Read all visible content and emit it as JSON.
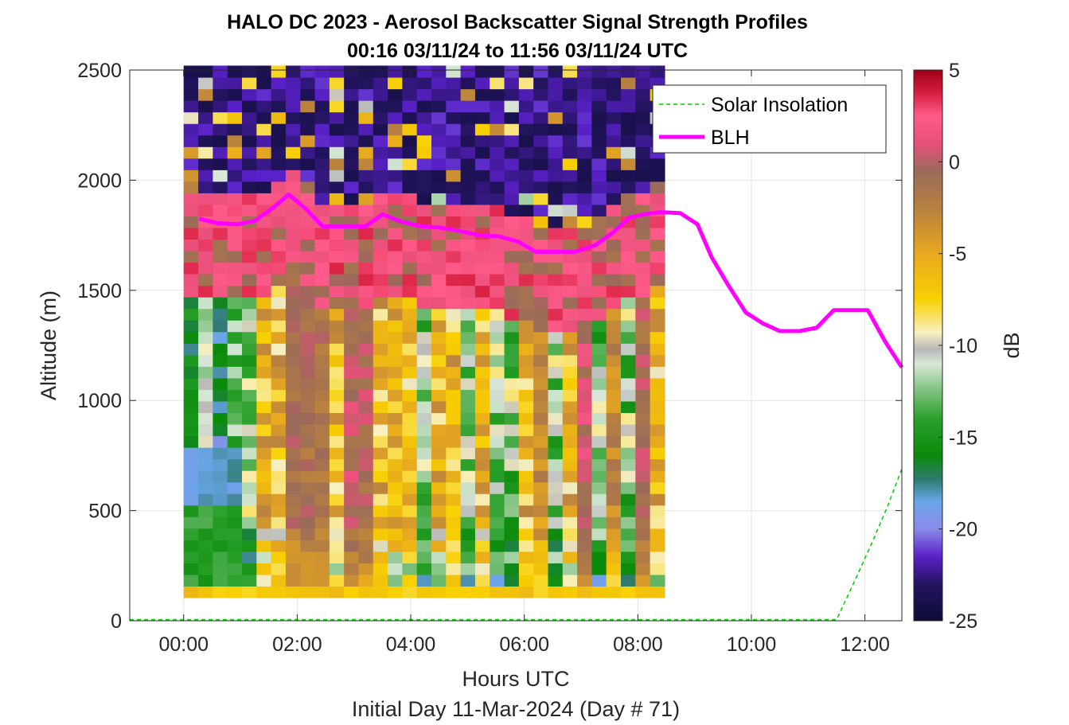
{
  "chart_data": {
    "type": "heatmap",
    "title": "HALO DC 2023 - Aerosol Backscatter Signal Strength Profiles",
    "subtitle": "00:16 03/11/24 to 11:56 03/11/24  UTC",
    "xlabel": "Hours UTC",
    "xlabel2": "Initial Day 11-Mar-2024 (Day # 71)",
    "ylabel": "Altitude (m)",
    "colorbar_label": "dB",
    "x_ticks": [
      "00:00",
      "02:00",
      "04:00",
      "06:00",
      "08:00",
      "10:00",
      "12:00"
    ],
    "x_tick_hours": [
      0,
      2,
      4,
      6,
      8,
      10,
      12
    ],
    "y_ticks": [
      "0",
      "500",
      "1000",
      "1500",
      "2000",
      "2500"
    ],
    "y_tick_values": [
      0,
      500,
      1000,
      1500,
      2000,
      2500
    ],
    "colorbar_ticks": [
      "5",
      "0",
      "-5",
      "-10",
      "-15",
      "-20",
      "-25"
    ],
    "colorbar_tick_values": [
      5,
      0,
      -5,
      -10,
      -15,
      -20,
      -25
    ],
    "xlim_hours": [
      -0.95,
      12.65
    ],
    "ylim": [
      0,
      2500
    ],
    "clim": [
      -25,
      5
    ],
    "grid": true,
    "legend_position": "top-right",
    "colormap_stops": [
      {
        "v": -25,
        "c": "#0d0d36"
      },
      {
        "v": -23,
        "c": "#241460"
      },
      {
        "v": -21.5,
        "c": "#5a20c8"
      },
      {
        "v": -20,
        "c": "#8a8ae8"
      },
      {
        "v": -18.5,
        "c": "#6aa6e8"
      },
      {
        "v": -17.3,
        "c": "#2e7a70"
      },
      {
        "v": -16,
        "c": "#0a8a0a"
      },
      {
        "v": -14,
        "c": "#2aa02a"
      },
      {
        "v": -12.5,
        "c": "#7ec07e"
      },
      {
        "v": -11,
        "c": "#d8e8d8"
      },
      {
        "v": -10.2,
        "c": "#b8b8b8"
      },
      {
        "v": -9.3,
        "c": "#f8f0c0"
      },
      {
        "v": -7.5,
        "c": "#f8d000"
      },
      {
        "v": -5,
        "c": "#e8a820"
      },
      {
        "v": -2.5,
        "c": "#b88040"
      },
      {
        "v": -0.5,
        "c": "#9a6a5a"
      },
      {
        "v": 1,
        "c": "#e8507a"
      },
      {
        "v": 2.5,
        "c": "#ff5a8a"
      },
      {
        "v": 3.7,
        "c": "#d82040"
      },
      {
        "v": 5,
        "c": "#a00018"
      }
    ],
    "heatmap": {
      "time_start_hour": 0.0,
      "time_step_hours": 0.2567,
      "altitude_start": 105,
      "altitude_step": 52.5,
      "description_of_rows": "each row is one altitude gate, each column one time step, values in dB",
      "cells": "generated procedurally to approximate the displayed profiles"
    },
    "series": [
      {
        "name": "Solar Insolation",
        "style": "dashed",
        "color": "#00cc00",
        "x": [
          -0.95,
          11.5,
          11.8,
          12.1,
          12.4,
          12.65
        ],
        "y": [
          5,
          5,
          170,
          340,
          520,
          690
        ]
      },
      {
        "name": "BLH",
        "style": "solid",
        "color": "#ff00ff",
        "x": [
          0.27,
          0.6,
          0.95,
          1.25,
          1.6,
          1.85,
          2.15,
          2.45,
          2.85,
          3.2,
          3.5,
          3.85,
          4.2,
          4.5,
          4.85,
          5.2,
          5.55,
          5.9,
          6.2,
          6.55,
          6.9,
          7.25,
          7.55,
          7.85,
          8.1,
          8.4,
          8.75,
          9.05,
          9.3,
          9.6,
          9.9,
          10.2,
          10.5,
          10.85,
          11.15,
          11.45,
          11.75,
          12.05,
          12.35,
          12.65
        ],
        "y": [
          1825,
          1805,
          1800,
          1815,
          1880,
          1935,
          1870,
          1790,
          1790,
          1790,
          1845,
          1810,
          1790,
          1785,
          1770,
          1750,
          1745,
          1720,
          1675,
          1675,
          1675,
          1705,
          1760,
          1830,
          1845,
          1855,
          1850,
          1800,
          1650,
          1520,
          1400,
          1350,
          1315,
          1315,
          1330,
          1410,
          1410,
          1410,
          1270,
          1150
        ]
      }
    ]
  },
  "legend": {
    "items": [
      {
        "label": "Solar Insolation",
        "color": "#00cc00",
        "style": "dashed"
      },
      {
        "label": "BLH",
        "color": "#ff00ff",
        "style": "solid"
      }
    ]
  }
}
